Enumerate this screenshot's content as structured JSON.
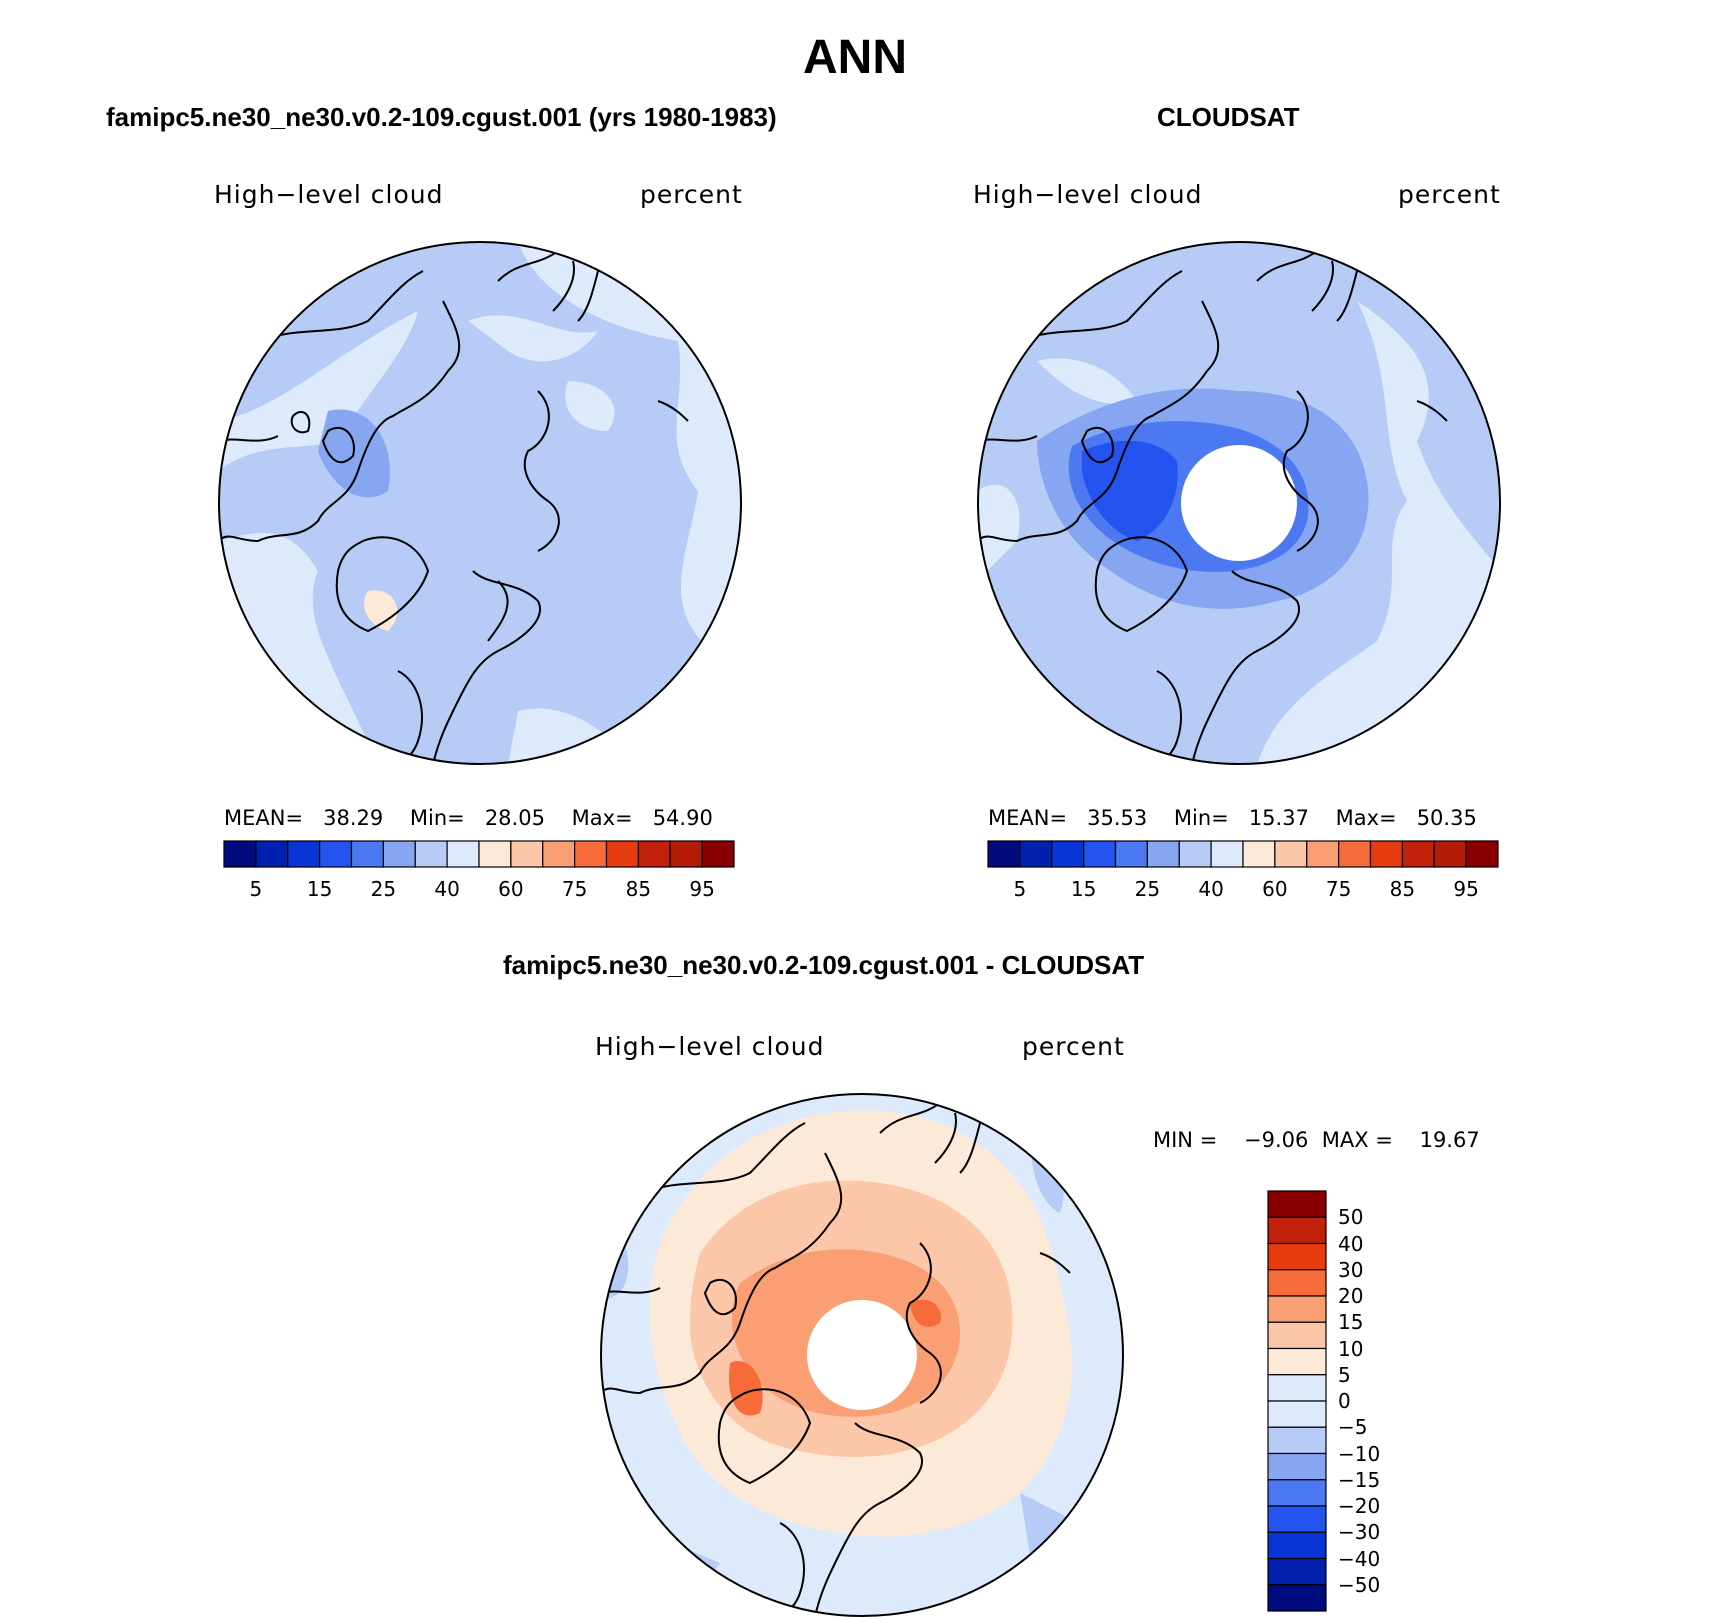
{
  "title": "ANN",
  "panels": [
    {
      "title": "famipc5.ne30_ne30.v0.2-109.cgust.001 (yrs 1980-1983)",
      "left_label": "High−level cloud",
      "right_label": "percent",
      "stats": {
        "mean_label": "MEAN=",
        "mean": "38.29",
        "min_label": "Min=",
        "min": "28.05",
        "max_label": "Max=",
        "max": "54.90"
      }
    },
    {
      "title": "CLOUDSAT",
      "left_label": "High−level cloud",
      "right_label": "percent",
      "stats": {
        "mean_label": "MEAN=",
        "mean": "35.53",
        "min_label": "Min=",
        "min": "15.37",
        "max_label": "Max=",
        "max": "50.35"
      }
    },
    {
      "title": "famipc5.ne30_ne30.v0.2-109.cgust.001 - CLOUDSAT",
      "left_label": "High−level cloud",
      "right_label": "percent",
      "stats": {
        "min_label": "MIN =",
        "min": "−9.06",
        "max_label": "MAX =",
        "max": "19.67"
      }
    }
  ],
  "colorbar_abs": {
    "colors": [
      "#000b80",
      "#0020b0",
      "#0a35d6",
      "#2453f0",
      "#4c79f2",
      "#86a6f2",
      "#b6cbf6",
      "#dceafb",
      "#fde9d8",
      "#fcc7a8",
      "#fa9e73",
      "#f76a3a",
      "#e83b0f",
      "#c2200a",
      "#b41a05",
      "#8a0000"
    ],
    "tick_labels": [
      "5",
      "15",
      "25",
      "40",
      "60",
      "75",
      "85",
      "95"
    ]
  },
  "colorbar_diff": {
    "colors": [
      "#000b80",
      "#0020b0",
      "#0a35d6",
      "#2453f0",
      "#4c79f2",
      "#86a6f2",
      "#b6cbf6",
      "#dceafb",
      "#fde9d8",
      "#fcc7a8",
      "#fa9e73",
      "#f76a3a",
      "#e83b0f",
      "#c2200a",
      "#8a0000"
    ],
    "tick_labels": [
      "50",
      "40",
      "30",
      "20",
      "15",
      "10",
      "5",
      "0",
      "−5",
      "−10",
      "−15",
      "−20",
      "−30",
      "−40",
      "−50"
    ]
  },
  "chart_data": [
    {
      "type": "heatmap",
      "projection": "north polar stereographic",
      "title": "famipc5.ne30_ne30.v0.2-109.cgust.001 (yrs 1980-1983)",
      "variable": "High−level cloud",
      "units": "percent",
      "mean": 38.29,
      "min": 28.05,
      "max": 54.9,
      "levels": [
        5,
        10,
        15,
        20,
        25,
        30,
        40,
        50,
        60,
        70,
        75,
        80,
        85,
        90,
        95
      ]
    },
    {
      "type": "heatmap",
      "projection": "north polar stereographic",
      "title": "CLOUDSAT",
      "variable": "High−level cloud",
      "units": "percent",
      "mean": 35.53,
      "min": 15.37,
      "max": 50.35,
      "levels": [
        5,
        10,
        15,
        20,
        25,
        30,
        40,
        50,
        60,
        70,
        75,
        80,
        85,
        90,
        95
      ],
      "missing_region": "pole"
    },
    {
      "type": "heatmap",
      "projection": "north polar stereographic",
      "title": "famipc5.ne30_ne30.v0.2-109.cgust.001 - CLOUDSAT",
      "variable": "High−level cloud",
      "units": "percent",
      "min": -9.06,
      "max": 19.67,
      "levels": [
        -50,
        -40,
        -30,
        -20,
        -15,
        -10,
        -5,
        0,
        5,
        10,
        15,
        20,
        30,
        40,
        50
      ],
      "missing_region": "pole"
    }
  ]
}
